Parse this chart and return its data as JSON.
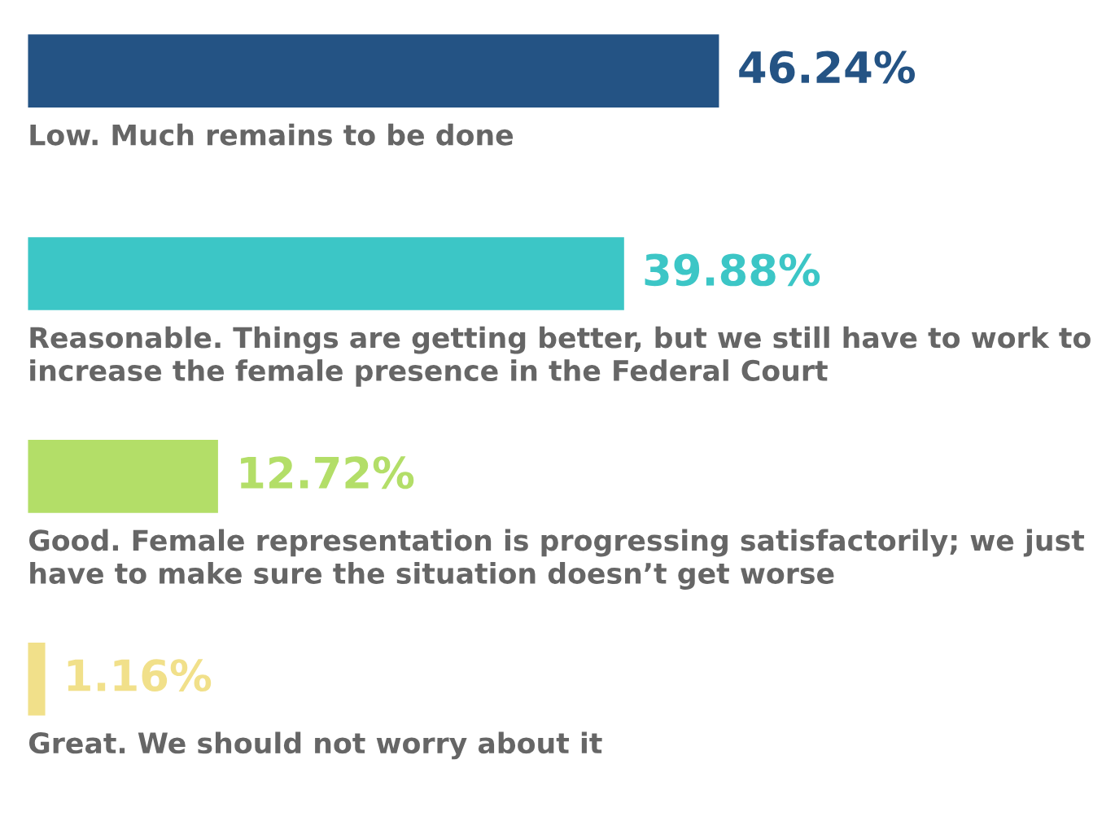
{
  "chart_data": {
    "type": "bar",
    "orientation": "horizontal",
    "categories": [
      "Low. Much remains to be done",
      "Reasonable. Things are getting better, but we still have to work to increase the female presence in the Federal Court",
      "Good. Female representation is progressing satisfactorily; we just have to make sure the situation doesn’t get worse",
      "Great. We should not worry about it"
    ],
    "values": [
      46.24,
      39.88,
      12.72,
      1.16
    ],
    "value_labels": [
      "46.24%",
      "39.88%",
      "12.72%",
      "1.16%"
    ],
    "colors": [
      "#245384",
      "#3cc6c6",
      "#b3de68",
      "#f1e08a"
    ]
  }
}
